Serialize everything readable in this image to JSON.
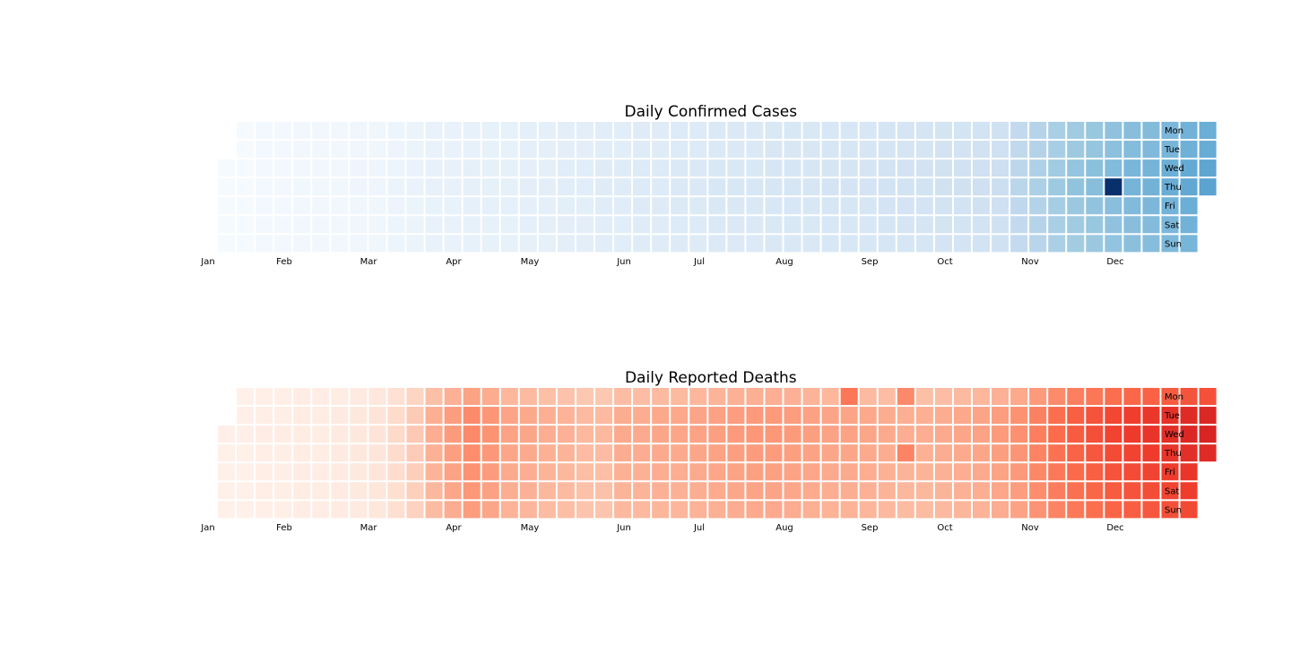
{
  "chart_data": [
    {
      "type": "heatmap",
      "title": "Daily Confirmed Cases",
      "colormap": "Blues",
      "color_low": "#f7fbff",
      "color_high": "#08306b",
      "x_tick_labels": [
        "Jan",
        "Feb",
        "Mar",
        "Apr",
        "May",
        "Jun",
        "Jul",
        "Aug",
        "Sep",
        "Oct",
        "Nov",
        "Dec"
      ],
      "y_tick_labels": [
        "Mon",
        "Tue",
        "Wed",
        "Thu",
        "Fri",
        "Sat",
        "Sun"
      ],
      "first_week_missing_days": 2,
      "last_week_present_days": 4,
      "value_scale": [
        0,
        100
      ],
      "weekly_level": [
        1,
        1,
        2,
        2,
        3,
        3,
        3,
        4,
        4,
        5,
        6,
        7,
        7,
        8,
        8,
        8,
        9,
        9,
        10,
        10,
        11,
        11,
        12,
        12,
        13,
        13,
        14,
        14,
        14,
        15,
        15,
        15,
        16,
        16,
        16,
        17,
        17,
        17,
        18,
        18,
        19,
        20,
        26,
        30,
        34,
        37,
        39,
        41,
        43,
        44,
        46,
        48,
        50
      ],
      "day_adjust": [
        1.0,
        1.02,
        1.08,
        1.1,
        1.04,
        1.0,
        0.98
      ],
      "outliers": [
        {
          "week": 47,
          "day": "Thu",
          "level": 100
        }
      ]
    },
    {
      "type": "heatmap",
      "title": "Daily Reported Deaths",
      "colormap": "Reds",
      "color_low": "#fff5f0",
      "color_high": "#67000d",
      "x_tick_labels": [
        "Jan",
        "Feb",
        "Mar",
        "Apr",
        "May",
        "Jun",
        "Jul",
        "Aug",
        "Sep",
        "Oct",
        "Nov",
        "Dec"
      ],
      "y_tick_labels": [
        "Mon",
        "Tue",
        "Wed",
        "Thu",
        "Fri",
        "Sat",
        "Sun"
      ],
      "first_week_missing_days": 2,
      "last_week_present_days": 4,
      "value_scale": [
        0,
        100
      ],
      "weekly_level": [
        3,
        3,
        4,
        4,
        5,
        5,
        6,
        7,
        9,
        13,
        18,
        26,
        31,
        36,
        33,
        29,
        28,
        26,
        25,
        23,
        23,
        27,
        27,
        28,
        28,
        29,
        30,
        31,
        32,
        32,
        31,
        30,
        29,
        29,
        28,
        27,
        26,
        26,
        27,
        28,
        29,
        31,
        34,
        39,
        44,
        48,
        51,
        54,
        56,
        58,
        60,
        62,
        63
      ],
      "day_adjust": [
        0.9,
        1.1,
        1.12,
        1.08,
        1.04,
        1.0,
        0.95
      ],
      "outliers": [
        {
          "week": 33,
          "day": "Mon",
          "level": 46
        },
        {
          "week": 36,
          "day": "Mon",
          "level": 40
        },
        {
          "week": 36,
          "day": "Thu",
          "level": 42
        }
      ]
    }
  ]
}
